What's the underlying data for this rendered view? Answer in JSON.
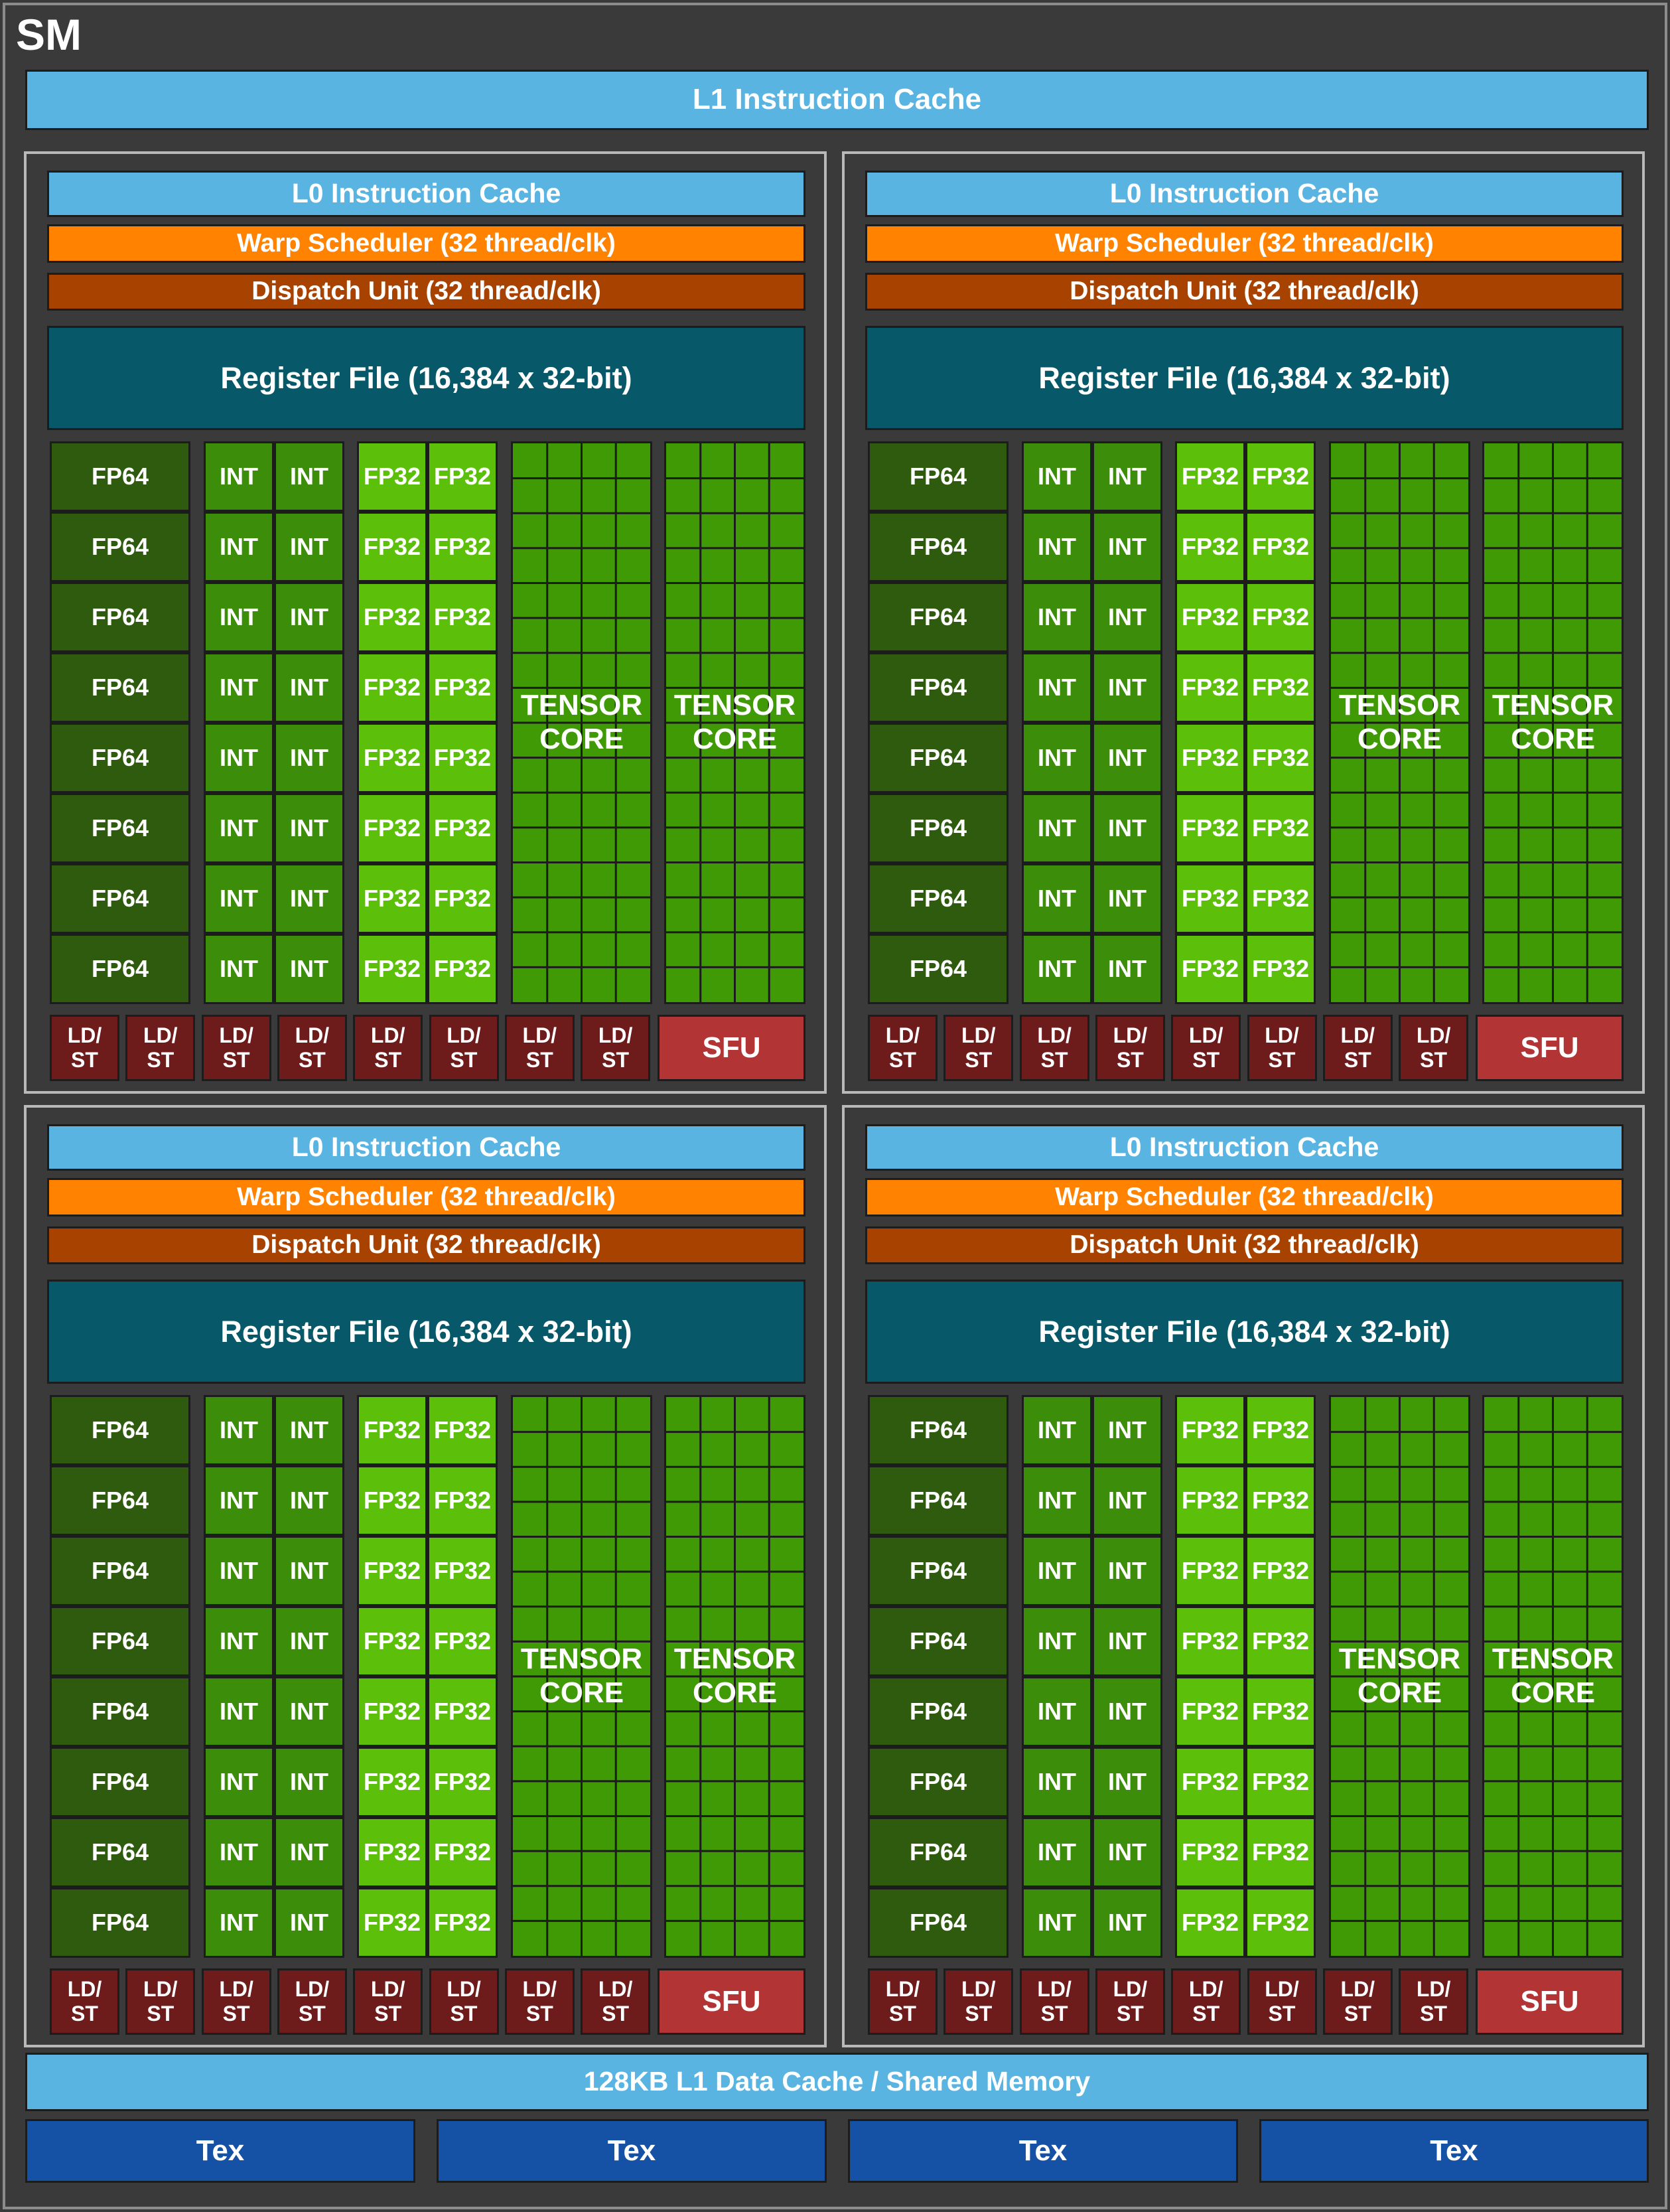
{
  "sm_title": "SM",
  "l1_instruction_cache": "L1 Instruction Cache",
  "processing_block": {
    "l0_instruction_cache": "L0 Instruction Cache",
    "warp_scheduler": "Warp Scheduler (32 thread/clk)",
    "dispatch_unit": "Dispatch Unit (32 thread/clk)",
    "register_file": "Register File (16,384 x 32-bit)",
    "fp64_label": "FP64",
    "int_label": "INT",
    "fp32_label": "FP32",
    "tensor_core_line1": "TENSOR",
    "tensor_core_line2": "CORE",
    "ldst_line1": "LD/",
    "ldst_line2": "ST",
    "sfu_label": "SFU",
    "fp64_units": 8,
    "int_units": 16,
    "fp32_units": 16,
    "tensor_cores": 2,
    "ldst_units": 8,
    "sfu_units": 1
  },
  "processing_block_count": 4,
  "l1_data_cache": "128KB L1 Data Cache / Shared Memory",
  "tex_units": [
    "Tex",
    "Tex",
    "Tex",
    "Tex"
  ],
  "colors": {
    "background": "#3a3a3a",
    "cache": "#5ab4e2",
    "warp_scheduler": "#ff8200",
    "dispatch_unit": "#a84200",
    "register_file": "#075868",
    "fp64": "#2e5b0e",
    "int": "#3c8d09",
    "fp32": "#5cc00a",
    "tensor_core": "#3f9a06",
    "ldst": "#6e1b1b",
    "sfu": "#b23434",
    "tex": "#1552a6"
  }
}
